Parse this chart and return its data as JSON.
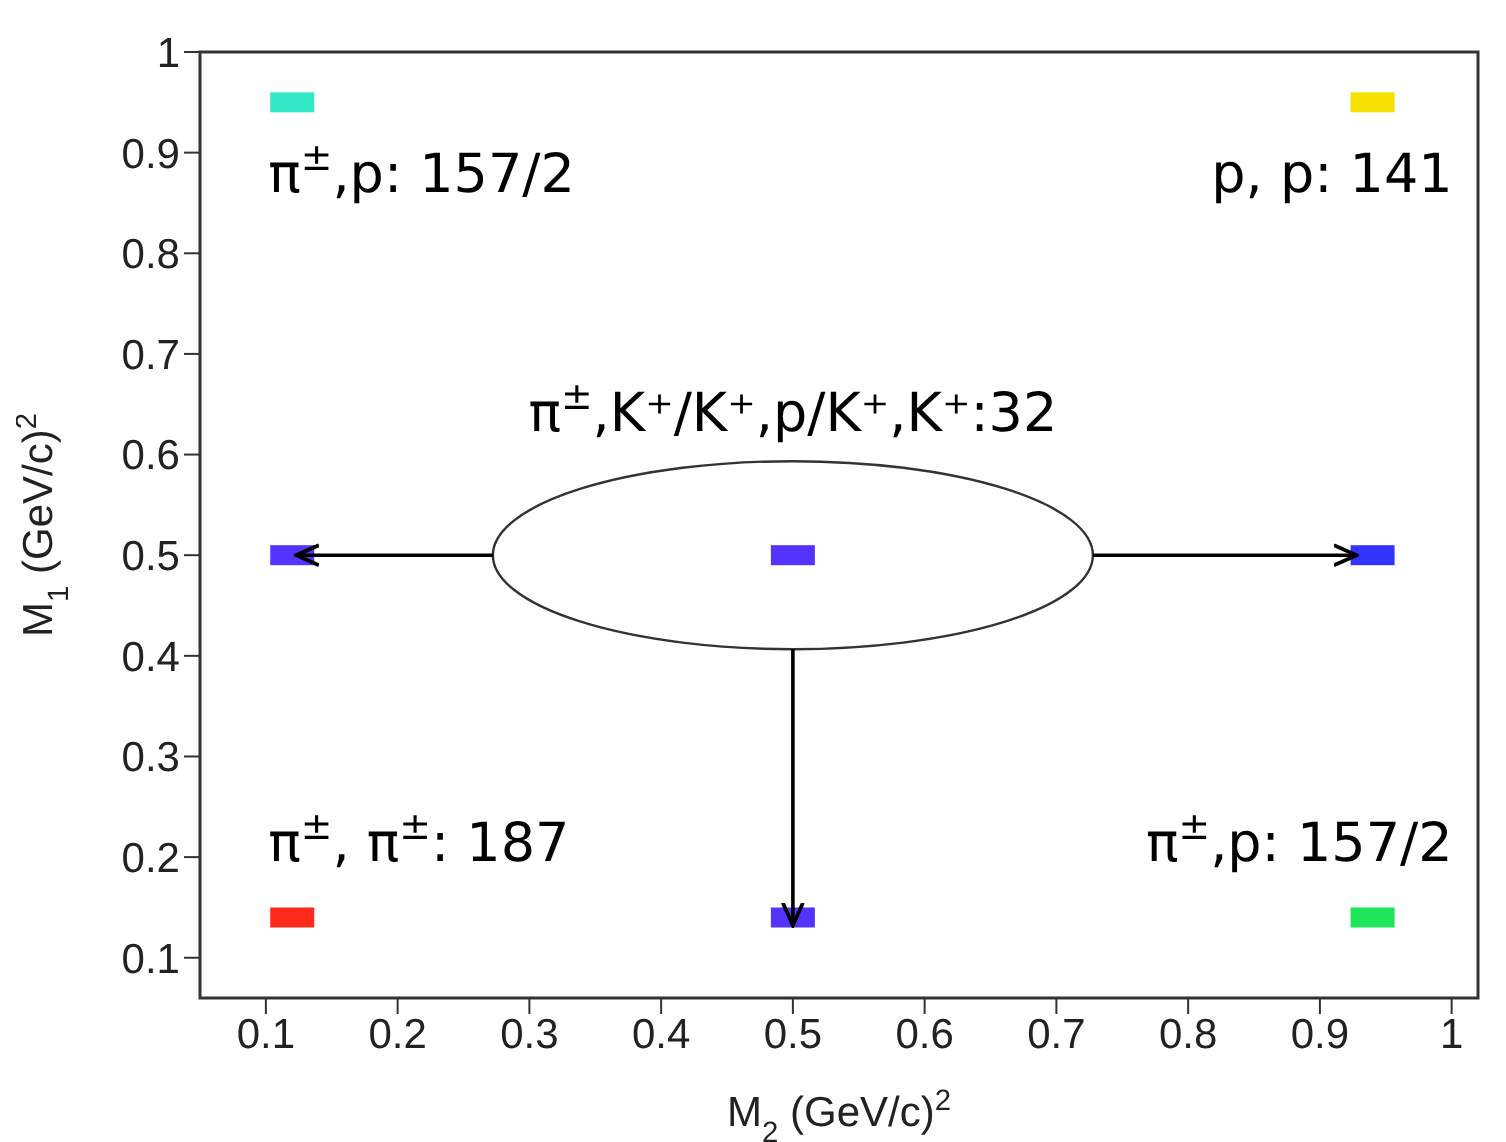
{
  "chart_data": {
    "type": "scatter",
    "xlabel": "M$_{2}$ (GeV/c)$^{2}$",
    "ylabel": "M$_{1}$ (GeV/c)$^{2}$",
    "x": [
      0.12,
      0.94,
      0.12,
      0.5,
      0.94,
      0.12,
      0.5,
      0.94
    ],
    "values": [
      0.95,
      0.95,
      0.5,
      0.5,
      0.5,
      0.14,
      0.14,
      0.14
    ],
    "colors": [
      "#33e6c4",
      "#f5e000",
      "#5533ff",
      "#5533ff",
      "#3333ff",
      "#ff2a1a",
      "#5533ff",
      "#1ee65a"
    ],
    "marker": "square",
    "xlim": [
      0.05,
      1.02
    ],
    "ylim": [
      0.06,
      1
    ],
    "xticks": [
      0.1,
      0.2,
      0.3,
      0.4,
      0.5,
      0.6,
      0.7,
      0.8,
      0.9,
      1
    ],
    "yticks": [
      0.1,
      0.2,
      0.3,
      0.4,
      0.5,
      0.6,
      0.7,
      0.8,
      0.9,
      1
    ],
    "grid": false,
    "legend": false,
    "annotations": [
      {
        "text": "π$^{±}$,p: 157/2",
        "x": 0.12,
        "y": 0.95
      },
      {
        "text": "p, p: 141",
        "x": 0.94,
        "y": 0.95
      },
      {
        "text": "π$^{±}$,K⁺/K⁺,p/K⁺,K⁺:32",
        "x": 0.5,
        "y": 0.5
      },
      {
        "text": "π$^{±}$, π$^{±}$: 187",
        "x": 0.12,
        "y": 0.14
      },
      {
        "text": "π$^{±}$,p: 157/2",
        "x": 0.94,
        "y": 0.14
      }
    ]
  }
}
